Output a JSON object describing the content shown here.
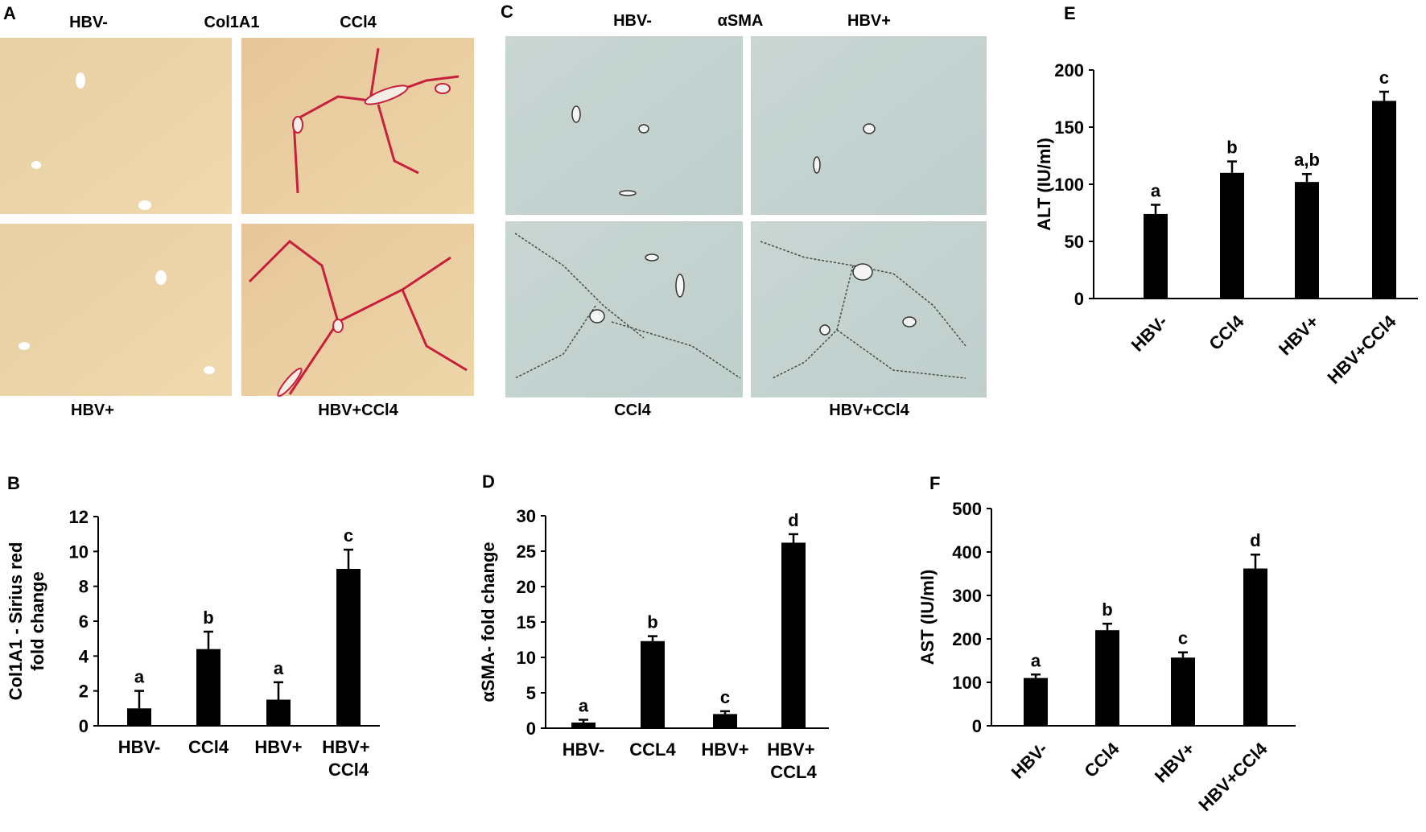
{
  "micrographs": [
    {
      "panel": "A",
      "labels": [
        "HBV-",
        "Col1A1",
        "CCl4",
        "HBV+",
        "HBV+CCl4"
      ]
    },
    {
      "panel": "C",
      "labels": [
        "HBV-",
        "αSMA",
        "HBV+",
        "CCl4",
        "HBV+CCl4"
      ]
    }
  ],
  "chart_data": [
    {
      "type": "bar",
      "panel": "B",
      "ylabel": [
        "Col1A1 - Sirius red",
        "fold change"
      ],
      "categories": [
        "HBV-",
        "CCl4",
        "HBV+",
        "HBV+ CCl4"
      ],
      "values": [
        1.0,
        4.4,
        1.5,
        9.0
      ],
      "errors": [
        1.0,
        1.0,
        1.0,
        1.1
      ],
      "annotations": [
        "a",
        "b",
        "a",
        "c"
      ],
      "ylim": [
        0,
        12
      ],
      "yticks": [
        0,
        2,
        4,
        6,
        8,
        10,
        12
      ],
      "color": "#000000",
      "xtick_rotation": 0
    },
    {
      "type": "bar",
      "panel": "D",
      "ylabel": [
        "αSMA- fold change"
      ],
      "categories": [
        "HBV-",
        "CCL4",
        "HBV+",
        "HBV+ CCL4"
      ],
      "values": [
        0.8,
        12.3,
        2.0,
        26.2
      ],
      "errors": [
        0.4,
        0.7,
        0.4,
        1.2
      ],
      "annotations": [
        "a",
        "b",
        "c",
        "d"
      ],
      "ylim": [
        0,
        30
      ],
      "yticks": [
        0,
        5,
        10,
        15,
        20,
        25,
        30
      ],
      "color": "#000000",
      "xtick_rotation": 0
    },
    {
      "type": "bar",
      "panel": "E",
      "ylabel": [
        "ALT (IU/ml)"
      ],
      "categories": [
        "HBV-",
        "CCl4",
        "HBV+",
        "HBV+CCl4"
      ],
      "values": [
        74,
        110,
        102,
        173
      ],
      "errors": [
        8,
        10,
        7,
        8
      ],
      "annotations": [
        "a",
        "b",
        "a,b",
        "c"
      ],
      "ylim": [
        0,
        200
      ],
      "yticks": [
        0,
        50,
        100,
        150,
        200
      ],
      "color": "#000000",
      "xtick_rotation": -45
    },
    {
      "type": "bar",
      "panel": "F",
      "ylabel": [
        "AST (IU/ml)"
      ],
      "categories": [
        "HBV-",
        "CCl4",
        "HBV+",
        "HBV+CCl4"
      ],
      "values": [
        110,
        220,
        157,
        362
      ],
      "errors": [
        8,
        15,
        12,
        32
      ],
      "annotations": [
        "a",
        "b",
        "c",
        "d"
      ],
      "ylim": [
        0,
        500
      ],
      "yticks": [
        0,
        100,
        200,
        300,
        400,
        500
      ],
      "color": "#000000",
      "xtick_rotation": -45
    }
  ]
}
